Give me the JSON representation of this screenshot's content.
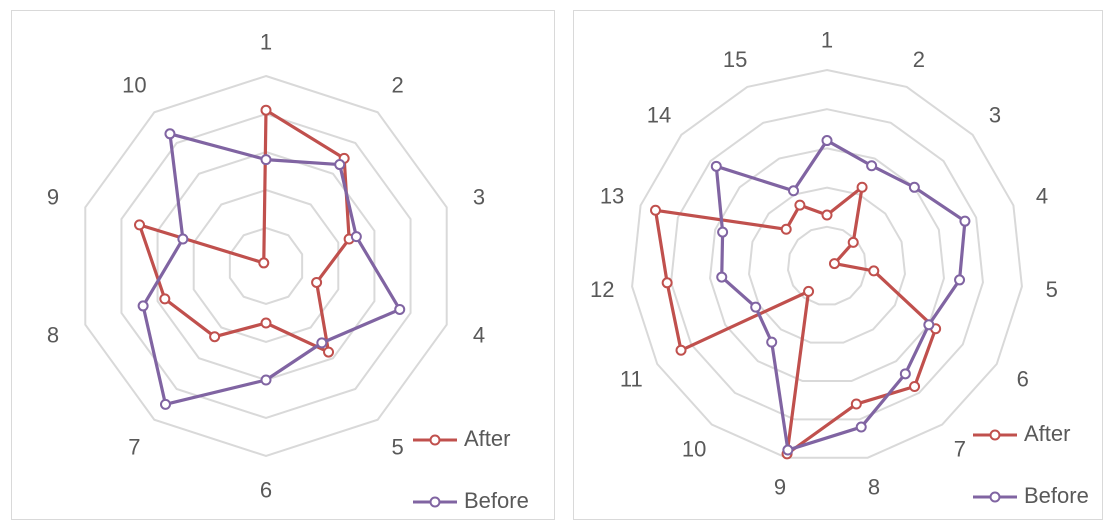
{
  "colors": {
    "after": "#c0504d",
    "before": "#8064a2",
    "grid": "#d9d9d9",
    "label": "#595959"
  },
  "chart_data": [
    {
      "type": "radar",
      "categories": [
        "1",
        "2",
        "3",
        "4",
        "5",
        "6",
        "7",
        "8",
        "9",
        "10"
      ],
      "rmax": 5,
      "rings": 5,
      "grid": true,
      "legend_position": "bottom-right",
      "series": [
        {
          "name": "After",
          "values": [
            4.1,
            3.5,
            2.3,
            1.4,
            2.8,
            1.5,
            2.3,
            2.8,
            3.5,
            0.1
          ]
        },
        {
          "name": "Before",
          "values": [
            2.8,
            3.3,
            2.5,
            3.7,
            2.5,
            3.0,
            4.5,
            3.4,
            2.3,
            4.3
          ]
        }
      ]
    },
    {
      "type": "radar",
      "categories": [
        "1",
        "2",
        "3",
        "4",
        "5",
        "6",
        "7",
        "8",
        "9",
        "10",
        "11",
        "12",
        "13",
        "14",
        "15"
      ],
      "rmax": 5,
      "rings": 5,
      "grid": true,
      "legend_position": "bottom-right",
      "series": [
        {
          "name": "After",
          "values": [
            1.3,
            2.2,
            0.9,
            0.2,
            1.2,
            3.2,
            3.8,
            3.6,
            4.9,
            0.8,
            4.3,
            4.1,
            4.6,
            1.4,
            1.7
          ]
        },
        {
          "name": "Before",
          "values": [
            3.2,
            2.8,
            3.0,
            3.7,
            3.4,
            3.0,
            3.4,
            4.2,
            4.8,
            2.4,
            2.1,
            2.7,
            2.8,
            3.8,
            2.1
          ]
        }
      ]
    }
  ],
  "legend": {
    "after_label": "After",
    "before_label": "Before"
  }
}
